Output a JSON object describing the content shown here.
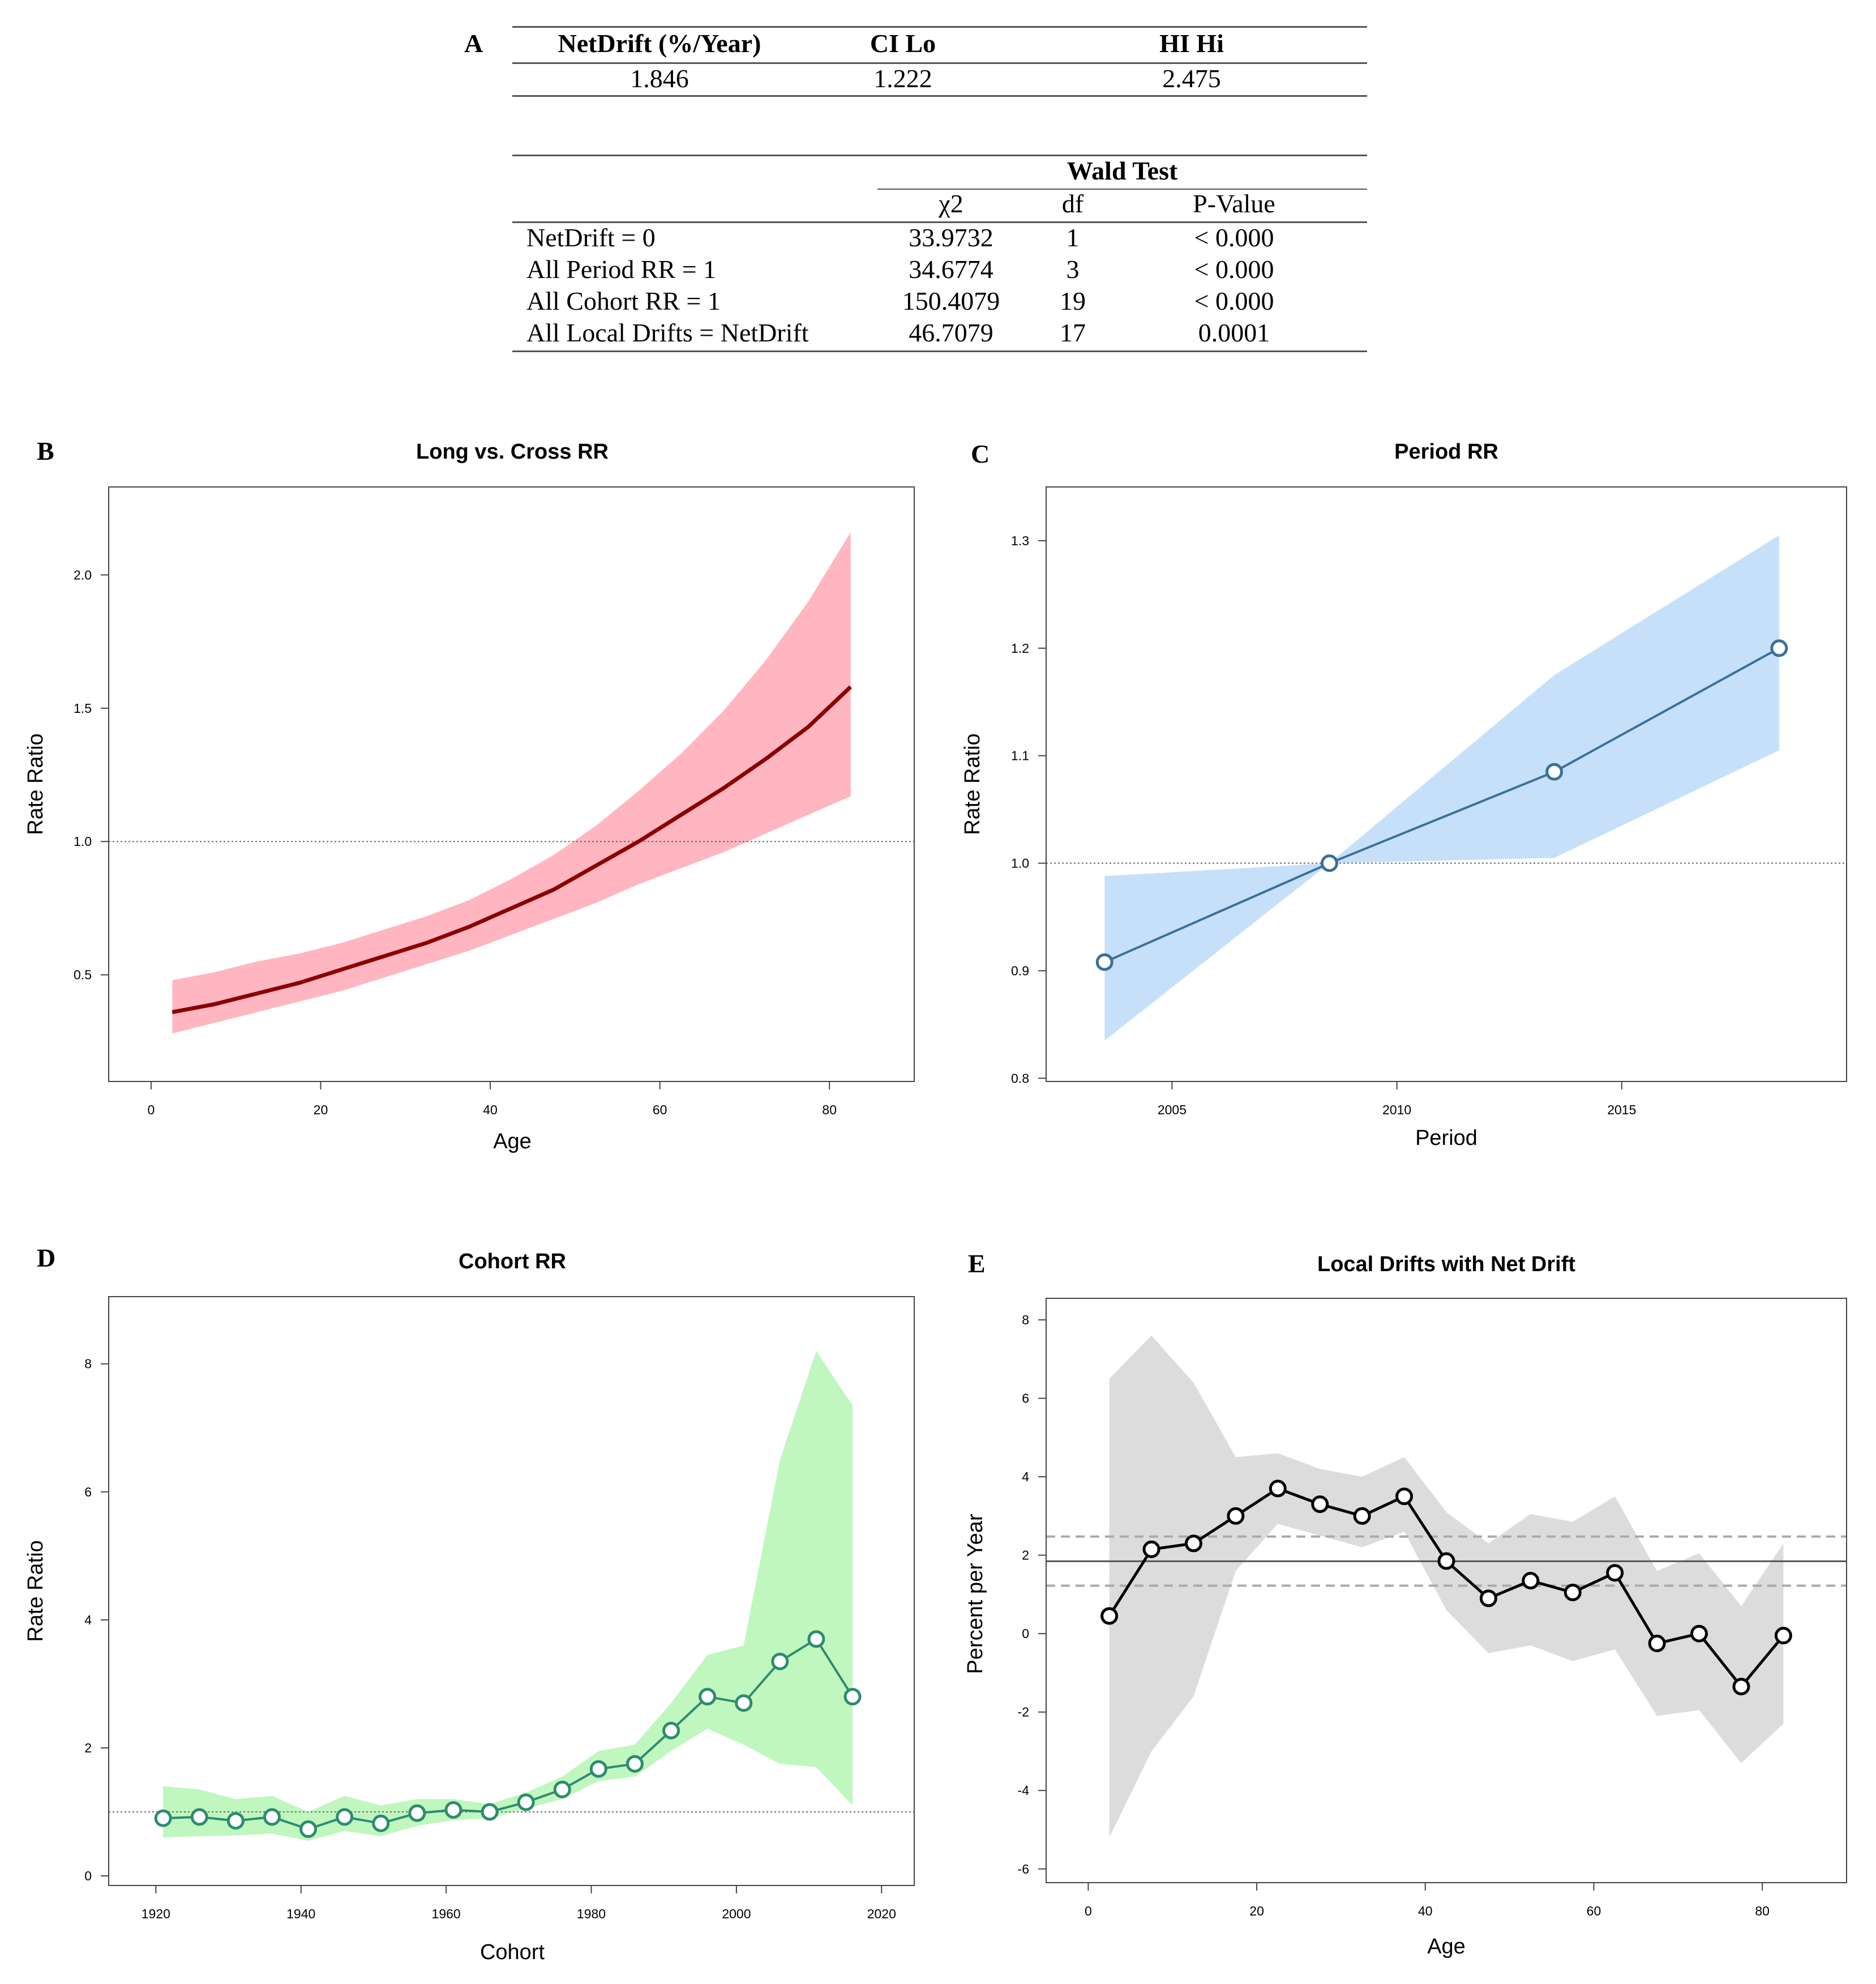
{
  "panel_letters": {
    "A": "A",
    "B": "B",
    "C": "C",
    "D": "D",
    "E": "E"
  },
  "table1": {
    "headers": [
      "NetDrift (%/Year)",
      "CI Lo",
      "HI Hi"
    ],
    "values": [
      "1.846",
      "1.222",
      "2.475"
    ]
  },
  "table2": {
    "group_header": "Wald Test",
    "sub_headers": [
      "χ2",
      "df",
      "P-Value"
    ],
    "rows": [
      {
        "label": "NetDrift = 0",
        "chi2": "33.9732",
        "df": "1",
        "p": "< 0.000"
      },
      {
        "label": "All Period RR = 1",
        "chi2": "34.6774",
        "df": "3",
        "p": "< 0.000"
      },
      {
        "label": "All Cohort RR = 1",
        "chi2": "150.4079",
        "df": "19",
        "p": "< 0.000"
      },
      {
        "label": "All Local Drifts = NetDrift",
        "chi2": "46.7079",
        "df": "17",
        "p": "0.0001"
      }
    ]
  },
  "chart_data": [
    {
      "id": "B",
      "type": "line",
      "title": "Long vs. Cross RR",
      "xlabel": "Age",
      "ylabel": "Rate Ratio",
      "xlim": [
        -5,
        90
      ],
      "ylim": [
        0.1,
        2.33
      ],
      "xticks": [
        "0",
        "20",
        "40",
        "60",
        "80"
      ],
      "xtick_values": [
        0,
        20,
        40,
        60,
        80
      ],
      "yticks": [
        "0.5",
        "1.0",
        "1.5",
        "2.0"
      ],
      "ytick_values": [
        0.5,
        1.0,
        1.5,
        2.0
      ],
      "reference_line": 1.0,
      "x": [
        2.5,
        7.5,
        12.5,
        17.5,
        22.5,
        27.5,
        32.5,
        37.5,
        42.5,
        47.5,
        52.5,
        57.5,
        62.5,
        67.5,
        72.5,
        77.5,
        82.5
      ],
      "series": [
        {
          "name": "RR",
          "values": [
            0.36,
            0.39,
            0.43,
            0.47,
            0.52,
            0.57,
            0.62,
            0.68,
            0.75,
            0.82,
            0.91,
            1.0,
            1.1,
            1.2,
            1.31,
            1.43,
            1.58
          ]
        },
        {
          "name": "CI Lo",
          "values": [
            0.28,
            0.32,
            0.36,
            0.4,
            0.44,
            0.49,
            0.54,
            0.59,
            0.65,
            0.71,
            0.77,
            0.84,
            0.9,
            0.96,
            1.03,
            1.1,
            1.17
          ]
        },
        {
          "name": "CI Hi",
          "values": [
            0.48,
            0.51,
            0.55,
            0.58,
            0.62,
            0.67,
            0.72,
            0.78,
            0.86,
            0.95,
            1.06,
            1.19,
            1.33,
            1.49,
            1.68,
            1.9,
            2.16
          ]
        }
      ],
      "colors": {
        "line": "#8b0000",
        "band": "#ffb6c1"
      }
    },
    {
      "id": "C",
      "type": "line",
      "title": "Period RR",
      "xlabel": "Period",
      "ylabel": "Rate Ratio",
      "xlim": [
        2002.2,
        2020.0
      ],
      "ylim": [
        0.797,
        1.35
      ],
      "xticks": [
        "2005",
        "2010",
        "2015"
      ],
      "xtick_values": [
        2005,
        2010,
        2015
      ],
      "yticks": [
        "0.8",
        "0.9",
        "1.0",
        "1.1",
        "1.2",
        "1.3"
      ],
      "ytick_values": [
        0.8,
        0.9,
        1.0,
        1.1,
        1.2,
        1.3
      ],
      "reference_line": 1.0,
      "x": [
        2003.5,
        2008.5,
        2013.5,
        2018.5
      ],
      "series": [
        {
          "name": "RR",
          "values": [
            0.908,
            1.0,
            1.085,
            1.2
          ]
        },
        {
          "name": "CI Lo",
          "values": [
            0.835,
            1.0,
            1.005,
            1.105
          ]
        },
        {
          "name": "CI Hi",
          "values": [
            0.988,
            1.0,
            1.175,
            1.305
          ]
        }
      ],
      "colors": {
        "line": "#3d6f96",
        "band": "#c6e0fa"
      }
    },
    {
      "id": "D",
      "type": "line",
      "title": "Cohort RR",
      "xlabel": "Cohort",
      "ylabel": "Rate Ratio",
      "xlim": [
        1913.5,
        2024.5
      ],
      "ylim": [
        -0.15,
        9.05
      ],
      "xticks": [
        "1920",
        "1940",
        "1960",
        "1980",
        "2000",
        "2020"
      ],
      "xtick_values": [
        1920,
        1940,
        1960,
        1980,
        2000,
        2020
      ],
      "yticks": [
        "0",
        "2",
        "4",
        "6",
        "8"
      ],
      "ytick_values": [
        0,
        2,
        4,
        6,
        8
      ],
      "reference_line": 1.0,
      "x": [
        1921,
        1926,
        1931,
        1936,
        1941,
        1946,
        1951,
        1956,
        1961,
        1966,
        1971,
        1976,
        1981,
        1986,
        1991,
        1996,
        2001,
        2006,
        2011,
        2016
      ],
      "series": [
        {
          "name": "RR",
          "values": [
            0.9,
            0.92,
            0.86,
            0.92,
            0.73,
            0.92,
            0.82,
            0.98,
            1.03,
            1.0,
            1.15,
            1.35,
            1.67,
            1.75,
            2.27,
            2.8,
            2.7,
            3.35,
            3.7,
            2.8
          ]
        },
        {
          "name": "CI Lo",
          "values": [
            0.6,
            0.62,
            0.63,
            0.66,
            0.55,
            0.7,
            0.62,
            0.78,
            0.87,
            0.9,
            1.05,
            1.2,
            1.48,
            1.55,
            1.95,
            2.3,
            2.05,
            1.75,
            1.7,
            1.1
          ]
        },
        {
          "name": "CI Hi",
          "values": [
            1.4,
            1.35,
            1.2,
            1.25,
            1.0,
            1.25,
            1.1,
            1.2,
            1.2,
            1.12,
            1.3,
            1.55,
            1.95,
            2.05,
            2.7,
            3.45,
            3.6,
            6.5,
            8.2,
            7.35
          ]
        }
      ],
      "colors": {
        "line": "#2e8b6e",
        "band": "#bff7bf"
      }
    },
    {
      "id": "E",
      "type": "line",
      "title": "Local Drifts with Net Drift",
      "xlabel": "Age",
      "ylabel": "Percent per Year",
      "xlim": [
        -5,
        90
      ],
      "ylim": [
        -6.35,
        8.55
      ],
      "xticks": [
        "0",
        "20",
        "40",
        "60",
        "80"
      ],
      "xtick_values": [
        0,
        20,
        40,
        60,
        80
      ],
      "yticks": [
        "-6",
        "-4",
        "-2",
        "0",
        "2",
        "4",
        "6",
        "8"
      ],
      "ytick_values": [
        -6,
        -4,
        -2,
        0,
        2,
        4,
        6,
        8
      ],
      "net_drift": 1.846,
      "net_drift_ci": [
        1.222,
        2.475
      ],
      "x": [
        2.5,
        7.5,
        12.5,
        17.5,
        22.5,
        27.5,
        32.5,
        37.5,
        42.5,
        47.5,
        52.5,
        57.5,
        62.5,
        67.5,
        72.5,
        77.5,
        82.5
      ],
      "series": [
        {
          "name": "Local Drift",
          "values": [
            0.45,
            2.15,
            2.3,
            3.0,
            3.7,
            3.3,
            3.0,
            3.5,
            1.85,
            0.9,
            1.35,
            1.05,
            1.55,
            -0.25,
            0.0,
            -1.35,
            -0.05
          ]
        },
        {
          "name": "CI Lo",
          "values": [
            -5.2,
            -3.0,
            -1.6,
            1.6,
            2.8,
            2.5,
            2.2,
            2.6,
            0.6,
            -0.5,
            -0.3,
            -0.7,
            -0.4,
            -2.1,
            -1.95,
            -3.3,
            -2.3
          ]
        },
        {
          "name": "CI Hi",
          "values": [
            6.5,
            7.6,
            6.4,
            4.5,
            4.6,
            4.2,
            4.0,
            4.5,
            3.1,
            2.3,
            3.05,
            2.85,
            3.5,
            1.6,
            2.05,
            0.7,
            2.3
          ]
        }
      ],
      "colors": {
        "line": "#000000",
        "band": "#dcdcdc",
        "net": "#555555",
        "ci": "#aaaaaa"
      }
    }
  ]
}
